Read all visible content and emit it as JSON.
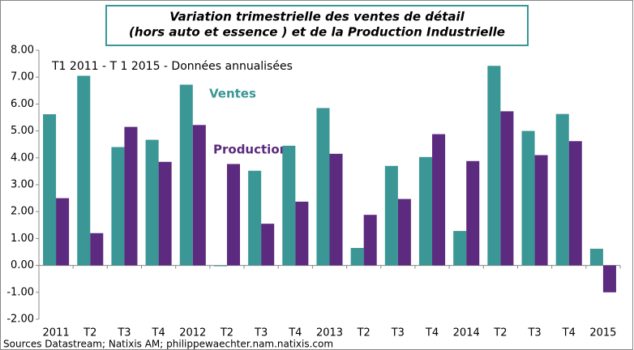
{
  "chart_data": {
    "type": "bar",
    "title": [
      "Variation trimestrielle  des ventes de détail",
      "(hors auto et essence ) et de la Production  Industrielle"
    ],
    "subtitle": "T1 2011 - T 1 2015 - Données annualisées",
    "source": "Sources Datastream; Natixis AM; philippewaechter.nam.natixis.com",
    "categories": [
      "2011",
      "T2",
      "T3",
      "T4",
      "2012",
      "T2",
      "T3",
      "T4",
      "2013",
      "T2",
      "T3",
      "T4",
      "2014",
      "T2",
      "T3",
      "T4",
      "2015"
    ],
    "series": [
      {
        "name": "Ventes",
        "color": "#3a9795",
        "values": [
          5.62,
          7.05,
          4.4,
          4.67,
          6.72,
          -0.03,
          3.52,
          4.45,
          5.85,
          0.65,
          3.7,
          4.03,
          1.28,
          7.42,
          5.0,
          5.63,
          0.62
        ]
      },
      {
        "name": "Production",
        "color": "#5c2a7e",
        "values": [
          2.5,
          1.2,
          5.15,
          3.85,
          5.22,
          3.77,
          1.55,
          2.37,
          4.15,
          1.88,
          2.47,
          4.88,
          3.88,
          5.73,
          4.1,
          4.62,
          -1.0
        ]
      }
    ],
    "ylim": [
      -2,
      8
    ],
    "yticks": [
      {
        "value": -2,
        "label": "-2.00"
      },
      {
        "value": -1,
        "label": "-1.00"
      },
      {
        "value": 0,
        "label": "0.00"
      },
      {
        "value": 1,
        "label": "1.00"
      },
      {
        "value": 2,
        "label": "2.00"
      },
      {
        "value": 3,
        "label": "3.00"
      },
      {
        "value": 4,
        "label": "4.00"
      },
      {
        "value": 5,
        "label": "5.00"
      },
      {
        "value": 6,
        "label": "6.00"
      },
      {
        "value": 7,
        "label": "7.00"
      },
      {
        "value": 8,
        "label": "8.00"
      }
    ],
    "grid": false
  }
}
